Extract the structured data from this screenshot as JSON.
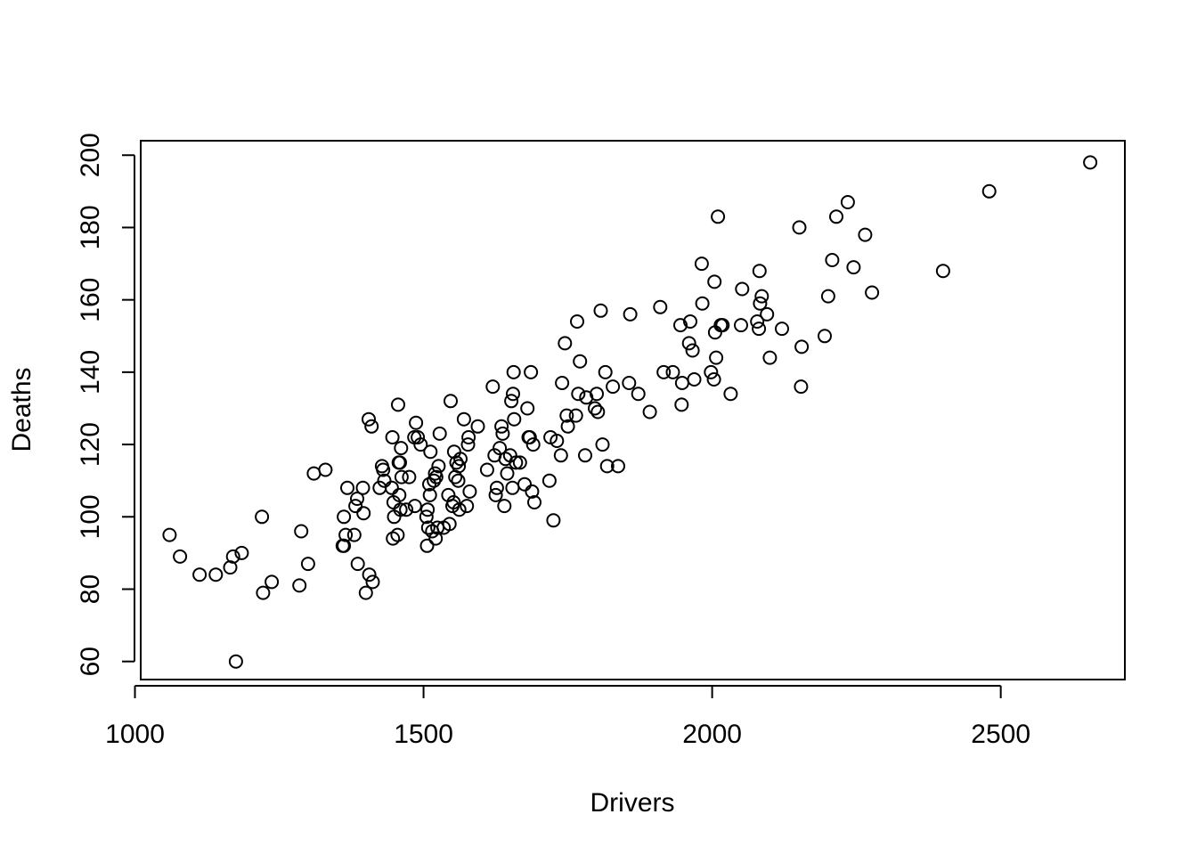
{
  "chart_data": {
    "type": "scatter",
    "title": "",
    "xlabel": "Drivers",
    "ylabel": "Deaths",
    "xlim": [
      1010,
      2715
    ],
    "ylim": [
      55,
      204
    ],
    "x_ticks": [
      1000,
      1500,
      2000,
      2500
    ],
    "y_ticks": [
      60,
      80,
      100,
      120,
      140,
      160,
      180,
      200
    ],
    "grid": false,
    "legend": "none",
    "marker": "open-circle",
    "points": [
      [
        1060,
        95
      ],
      [
        1078,
        89
      ],
      [
        1112,
        84
      ],
      [
        1140,
        84
      ],
      [
        1165,
        86
      ],
      [
        1170,
        89
      ],
      [
        1175,
        60
      ],
      [
        1185,
        90
      ],
      [
        1220,
        100
      ],
      [
        1222,
        79
      ],
      [
        1237,
        82
      ],
      [
        1285,
        81
      ],
      [
        1288,
        96
      ],
      [
        1300,
        87
      ],
      [
        1310,
        112
      ],
      [
        1330,
        113
      ],
      [
        1360,
        92
      ],
      [
        1362,
        92
      ],
      [
        1362,
        100
      ],
      [
        1365,
        95
      ],
      [
        1368,
        108
      ],
      [
        1380,
        95
      ],
      [
        1382,
        103
      ],
      [
        1385,
        105
      ],
      [
        1386,
        87
      ],
      [
        1395,
        108
      ],
      [
        1396,
        101
      ],
      [
        1400,
        79
      ],
      [
        1405,
        127
      ],
      [
        1406,
        84
      ],
      [
        1410,
        125
      ],
      [
        1412,
        82
      ],
      [
        1424,
        108
      ],
      [
        1428,
        114
      ],
      [
        1430,
        113
      ],
      [
        1432,
        110
      ],
      [
        1445,
        108
      ],
      [
        1446,
        122
      ],
      [
        1447,
        94
      ],
      [
        1448,
        104
      ],
      [
        1449,
        100
      ],
      [
        1455,
        95
      ],
      [
        1456,
        131
      ],
      [
        1457,
        115
      ],
      [
        1458,
        106
      ],
      [
        1459,
        115
      ],
      [
        1460,
        102
      ],
      [
        1461,
        119
      ],
      [
        1462,
        111
      ],
      [
        1470,
        102
      ],
      [
        1475,
        111
      ],
      [
        1484,
        122
      ],
      [
        1485,
        103
      ],
      [
        1487,
        126
      ],
      [
        1490,
        122
      ],
      [
        1495,
        120
      ],
      [
        1505,
        100
      ],
      [
        1506,
        92
      ],
      [
        1507,
        102
      ],
      [
        1508,
        97
      ],
      [
        1510,
        109
      ],
      [
        1511,
        106
      ],
      [
        1512,
        118
      ],
      [
        1515,
        96
      ],
      [
        1518,
        110
      ],
      [
        1520,
        112
      ],
      [
        1521,
        94
      ],
      [
        1522,
        111
      ],
      [
        1524,
        97
      ],
      [
        1526,
        114
      ],
      [
        1528,
        123
      ],
      [
        1535,
        97
      ],
      [
        1543,
        106
      ],
      [
        1545,
        98
      ],
      [
        1547,
        132
      ],
      [
        1550,
        103
      ],
      [
        1552,
        104
      ],
      [
        1553,
        118
      ],
      [
        1555,
        111
      ],
      [
        1557,
        115
      ],
      [
        1560,
        110
      ],
      [
        1561,
        114
      ],
      [
        1562,
        102
      ],
      [
        1564,
        116
      ],
      [
        1570,
        127
      ],
      [
        1575,
        103
      ],
      [
        1577,
        120
      ],
      [
        1578,
        122
      ],
      [
        1580,
        107
      ],
      [
        1594,
        125
      ],
      [
        1610,
        113
      ],
      [
        1620,
        136
      ],
      [
        1623,
        117
      ],
      [
        1625,
        106
      ],
      [
        1627,
        108
      ],
      [
        1632,
        119
      ],
      [
        1635,
        125
      ],
      [
        1637,
        123
      ],
      [
        1640,
        103
      ],
      [
        1642,
        116
      ],
      [
        1645,
        112
      ],
      [
        1650,
        117
      ],
      [
        1652,
        132
      ],
      [
        1654,
        108
      ],
      [
        1655,
        134
      ],
      [
        1656,
        140
      ],
      [
        1657,
        127
      ],
      [
        1660,
        115
      ],
      [
        1667,
        115
      ],
      [
        1675,
        109
      ],
      [
        1680,
        130
      ],
      [
        1682,
        122
      ],
      [
        1684,
        122
      ],
      [
        1686,
        140
      ],
      [
        1688,
        107
      ],
      [
        1690,
        120
      ],
      [
        1692,
        104
      ],
      [
        1718,
        110
      ],
      [
        1720,
        122
      ],
      [
        1725,
        99
      ],
      [
        1731,
        121
      ],
      [
        1738,
        117
      ],
      [
        1740,
        137
      ],
      [
        1745,
        148
      ],
      [
        1748,
        128
      ],
      [
        1750,
        125
      ],
      [
        1764,
        128
      ],
      [
        1766,
        154
      ],
      [
        1768,
        134
      ],
      [
        1771,
        143
      ],
      [
        1780,
        117
      ],
      [
        1782,
        133
      ],
      [
        1797,
        130
      ],
      [
        1800,
        134
      ],
      [
        1802,
        129
      ],
      [
        1807,
        157
      ],
      [
        1810,
        120
      ],
      [
        1815,
        140
      ],
      [
        1818,
        114
      ],
      [
        1828,
        136
      ],
      [
        1837,
        114
      ],
      [
        1856,
        137
      ],
      [
        1858,
        156
      ],
      [
        1872,
        134
      ],
      [
        1892,
        129
      ],
      [
        1910,
        158
      ],
      [
        1916,
        140
      ],
      [
        1932,
        140
      ],
      [
        1945,
        153
      ],
      [
        1947,
        131
      ],
      [
        1948,
        137
      ],
      [
        1960,
        148
      ],
      [
        1962,
        154
      ],
      [
        1966,
        146
      ],
      [
        1969,
        138
      ],
      [
        1982,
        170
      ],
      [
        1983,
        159
      ],
      [
        1998,
        140
      ],
      [
        2003,
        138
      ],
      [
        2004,
        165
      ],
      [
        2005,
        151
      ],
      [
        2007,
        144
      ],
      [
        2010,
        183
      ],
      [
        2015,
        153
      ],
      [
        2018,
        153
      ],
      [
        2032,
        134
      ],
      [
        2050,
        153
      ],
      [
        2052,
        163
      ],
      [
        2078,
        154
      ],
      [
        2081,
        152
      ],
      [
        2082,
        168
      ],
      [
        2083,
        159
      ],
      [
        2086,
        161
      ],
      [
        2095,
        156
      ],
      [
        2100,
        144
      ],
      [
        2121,
        152
      ],
      [
        2151,
        180
      ],
      [
        2154,
        136
      ],
      [
        2155,
        147
      ],
      [
        2195,
        150
      ],
      [
        2201,
        161
      ],
      [
        2208,
        171
      ],
      [
        2215,
        183
      ],
      [
        2235,
        187
      ],
      [
        2245,
        169
      ],
      [
        2265,
        178
      ],
      [
        2277,
        162
      ],
      [
        2400,
        168
      ],
      [
        2480,
        190
      ],
      [
        2655,
        198
      ]
    ]
  }
}
